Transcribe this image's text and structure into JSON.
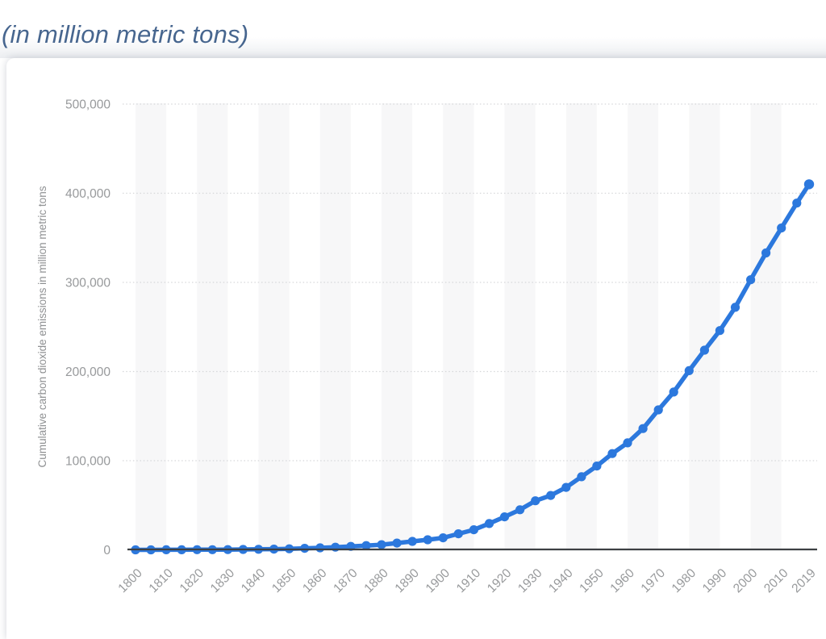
{
  "page": {
    "title": "(in million metric tons)"
  },
  "chart_data": {
    "type": "line",
    "title": "(in million metric tons)",
    "xlabel": "",
    "ylabel": "Cumulative carbon dioxide emissions in million metric tons",
    "xlim": [
      1800,
      2019
    ],
    "ylim": [
      0,
      500000
    ],
    "grid": "horizontal dotted lines at each 100,000",
    "background": "alternating light-gray decade stripes starting at 1800",
    "legend_position": "none",
    "x_tick_labels": [
      "1800",
      "1810",
      "1820",
      "1830",
      "1840",
      "1850",
      "1860",
      "1870",
      "1880",
      "1890",
      "1900",
      "1910",
      "1920",
      "1930",
      "1940",
      "1950",
      "1960",
      "1970",
      "1980",
      "1990",
      "2000",
      "2010",
      "2019"
    ],
    "y_ticks": {
      "labels": [
        "0",
        "100,000",
        "200,000",
        "300,000",
        "400,000",
        "500,000"
      ],
      "values": [
        0,
        100000,
        200000,
        300000,
        400000,
        500000
      ]
    },
    "series": [
      {
        "name": "Cumulative carbon dioxide emissions",
        "color": "#2c78dd",
        "marker": "circle",
        "x": [
          1800,
          1805,
          1810,
          1815,
          1820,
          1825,
          1830,
          1835,
          1840,
          1845,
          1850,
          1855,
          1860,
          1865,
          1870,
          1875,
          1880,
          1885,
          1890,
          1895,
          1900,
          1905,
          1910,
          1915,
          1920,
          1925,
          1930,
          1935,
          1940,
          1945,
          1950,
          1955,
          1960,
          1965,
          1970,
          1975,
          1980,
          1985,
          1990,
          1995,
          2000,
          2005,
          2010,
          2015,
          2019
        ],
        "y": [
          30,
          45,
          65,
          95,
          140,
          200,
          290,
          420,
          600,
          850,
          1200,
          1700,
          2300,
          3000,
          3900,
          4800,
          5800,
          7600,
          9500,
          11300,
          13500,
          18000,
          22500,
          29500,
          37000,
          45000,
          55000,
          61000,
          70000,
          82000,
          94000,
          108000,
          120000,
          136000,
          157000,
          177000,
          201000,
          224000,
          246000,
          272000,
          303000,
          333000,
          361000,
          389000,
          410000
        ]
      }
    ]
  },
  "colors": {
    "title": "#47668f",
    "line": "#2c78dd",
    "axis_line": "#3d4043",
    "tick_label": "#97999b",
    "axis_title": "#8f9193",
    "gridline": "#d6d7d9",
    "stripe": "#f7f7f8",
    "card_background": "#ffffff"
  }
}
